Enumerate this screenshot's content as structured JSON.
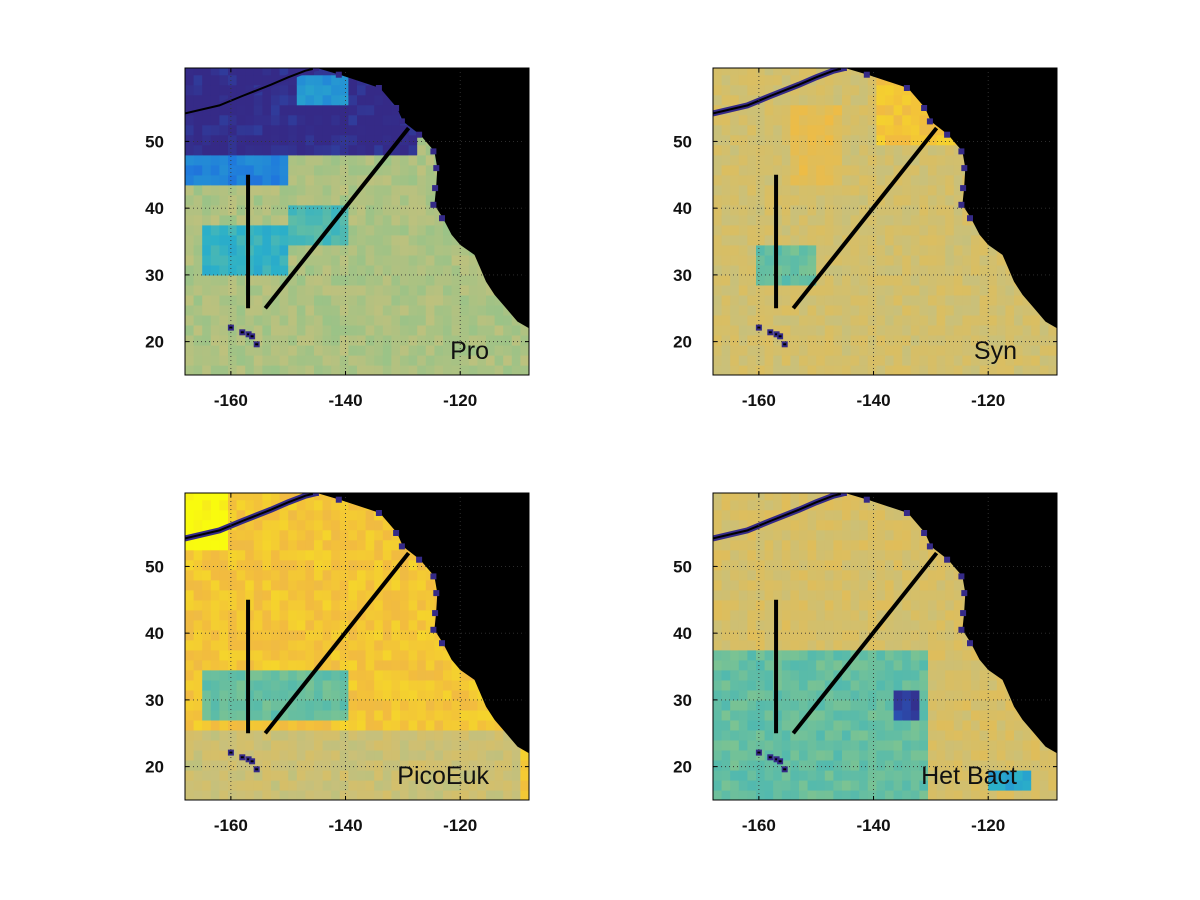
{
  "figure": {
    "panels_layout": "2x2",
    "colormap": [
      "#352a87",
      "#1f77dd",
      "#2bb0c9",
      "#80c48f",
      "#c9c07a",
      "#f2bb3f",
      "#f9fb0e"
    ],
    "land_color": "#000000",
    "cruise_track_color": "#000000"
  },
  "chart_data": [
    {
      "type": "heatmap",
      "title": "",
      "label": "Pro",
      "xlabel": "",
      "ylabel": "",
      "xlim": [
        -168,
        -108
      ],
      "ylim": [
        15,
        61
      ],
      "xticks": [
        -160,
        -140,
        -120
      ],
      "yticks": [
        20,
        30,
        40,
        50
      ],
      "grid": true,
      "cruise_track": [
        [
          -157,
          45
        ],
        [
          -157,
          25
        ],
        [
          -154,
          25
        ],
        [
          -129,
          52
        ]
      ],
      "field_description_cells": [
        {
          "lon": [
            -168,
            -128
          ],
          "lat": [
            48,
            61
          ],
          "level": 0.0
        },
        {
          "lon": [
            -168,
            -150
          ],
          "lat": [
            43,
            48
          ],
          "level": 0.2
        },
        {
          "lon": [
            -165,
            -150
          ],
          "lat": [
            30,
            38
          ],
          "level": 0.35
        },
        {
          "lon": [
            -150,
            -140
          ],
          "lat": [
            34,
            40
          ],
          "level": 0.4
        },
        {
          "lon": [
            -148,
            -140
          ],
          "lat": [
            55,
            60
          ],
          "level": 0.25
        }
      ],
      "background_level": 0.6
    },
    {
      "type": "heatmap",
      "title": "",
      "label": "Syn",
      "xlabel": "",
      "ylabel": "",
      "xlim": [
        -168,
        -108
      ],
      "ylim": [
        15,
        61
      ],
      "xticks": [
        -160,
        -140,
        -120
      ],
      "yticks": [
        20,
        30,
        40,
        50
      ],
      "grid": true,
      "cruise_track": [
        [
          -157,
          45
        ],
        [
          -157,
          25
        ],
        [
          -154,
          25
        ],
        [
          -129,
          52
        ]
      ],
      "field_description_cells": [
        {
          "lon": [
            -160,
            -150
          ],
          "lat": [
            28,
            34
          ],
          "level": 0.45
        },
        {
          "lon": [
            -155,
            -145
          ],
          "lat": [
            44,
            55
          ],
          "level": 0.78
        },
        {
          "lon": [
            -140,
            -125
          ],
          "lat": [
            50,
            60
          ],
          "level": 0.85
        }
      ],
      "background_level": 0.7
    },
    {
      "type": "heatmap",
      "title": "",
      "label": "PicoEuk",
      "xlabel": "",
      "ylabel": "",
      "xlim": [
        -168,
        -108
      ],
      "ylim": [
        15,
        61
      ],
      "xticks": [
        -160,
        -140,
        -120
      ],
      "yticks": [
        20,
        30,
        40,
        50
      ],
      "grid": true,
      "cruise_track": [
        [
          -157,
          45
        ],
        [
          -157,
          25
        ],
        [
          -154,
          25
        ],
        [
          -129,
          52
        ]
      ],
      "field_description_cells": [
        {
          "lon": [
            -168,
            -160
          ],
          "lat": [
            52,
            61
          ],
          "level": 1.0
        },
        {
          "lon": [
            -165,
            -140
          ],
          "lat": [
            27,
            34
          ],
          "level": 0.45
        },
        {
          "lon": [
            -168,
            -110
          ],
          "lat": [
            15,
            26
          ],
          "level": 0.68
        }
      ],
      "background_level": 0.86
    },
    {
      "type": "heatmap",
      "title": "",
      "label": "Het Bact",
      "xlabel": "",
      "ylabel": "",
      "xlim": [
        -168,
        -108
      ],
      "ylim": [
        15,
        61
      ],
      "xticks": [
        -160,
        -140,
        -120
      ],
      "yticks": [
        20,
        30,
        40,
        50
      ],
      "grid": true,
      "cruise_track": [
        [
          -157,
          45
        ],
        [
          -157,
          25
        ],
        [
          -154,
          25
        ],
        [
          -129,
          52
        ]
      ],
      "field_description_cells": [
        {
          "lon": [
            -168,
            -130
          ],
          "lat": [
            15,
            38
          ],
          "level": 0.45
        },
        {
          "lon": [
            -137,
            -132
          ],
          "lat": [
            27,
            31
          ],
          "level": 0.05
        },
        {
          "lon": [
            -120,
            -112
          ],
          "lat": [
            16,
            20
          ],
          "level": 0.3
        }
      ],
      "background_level": 0.72
    }
  ]
}
